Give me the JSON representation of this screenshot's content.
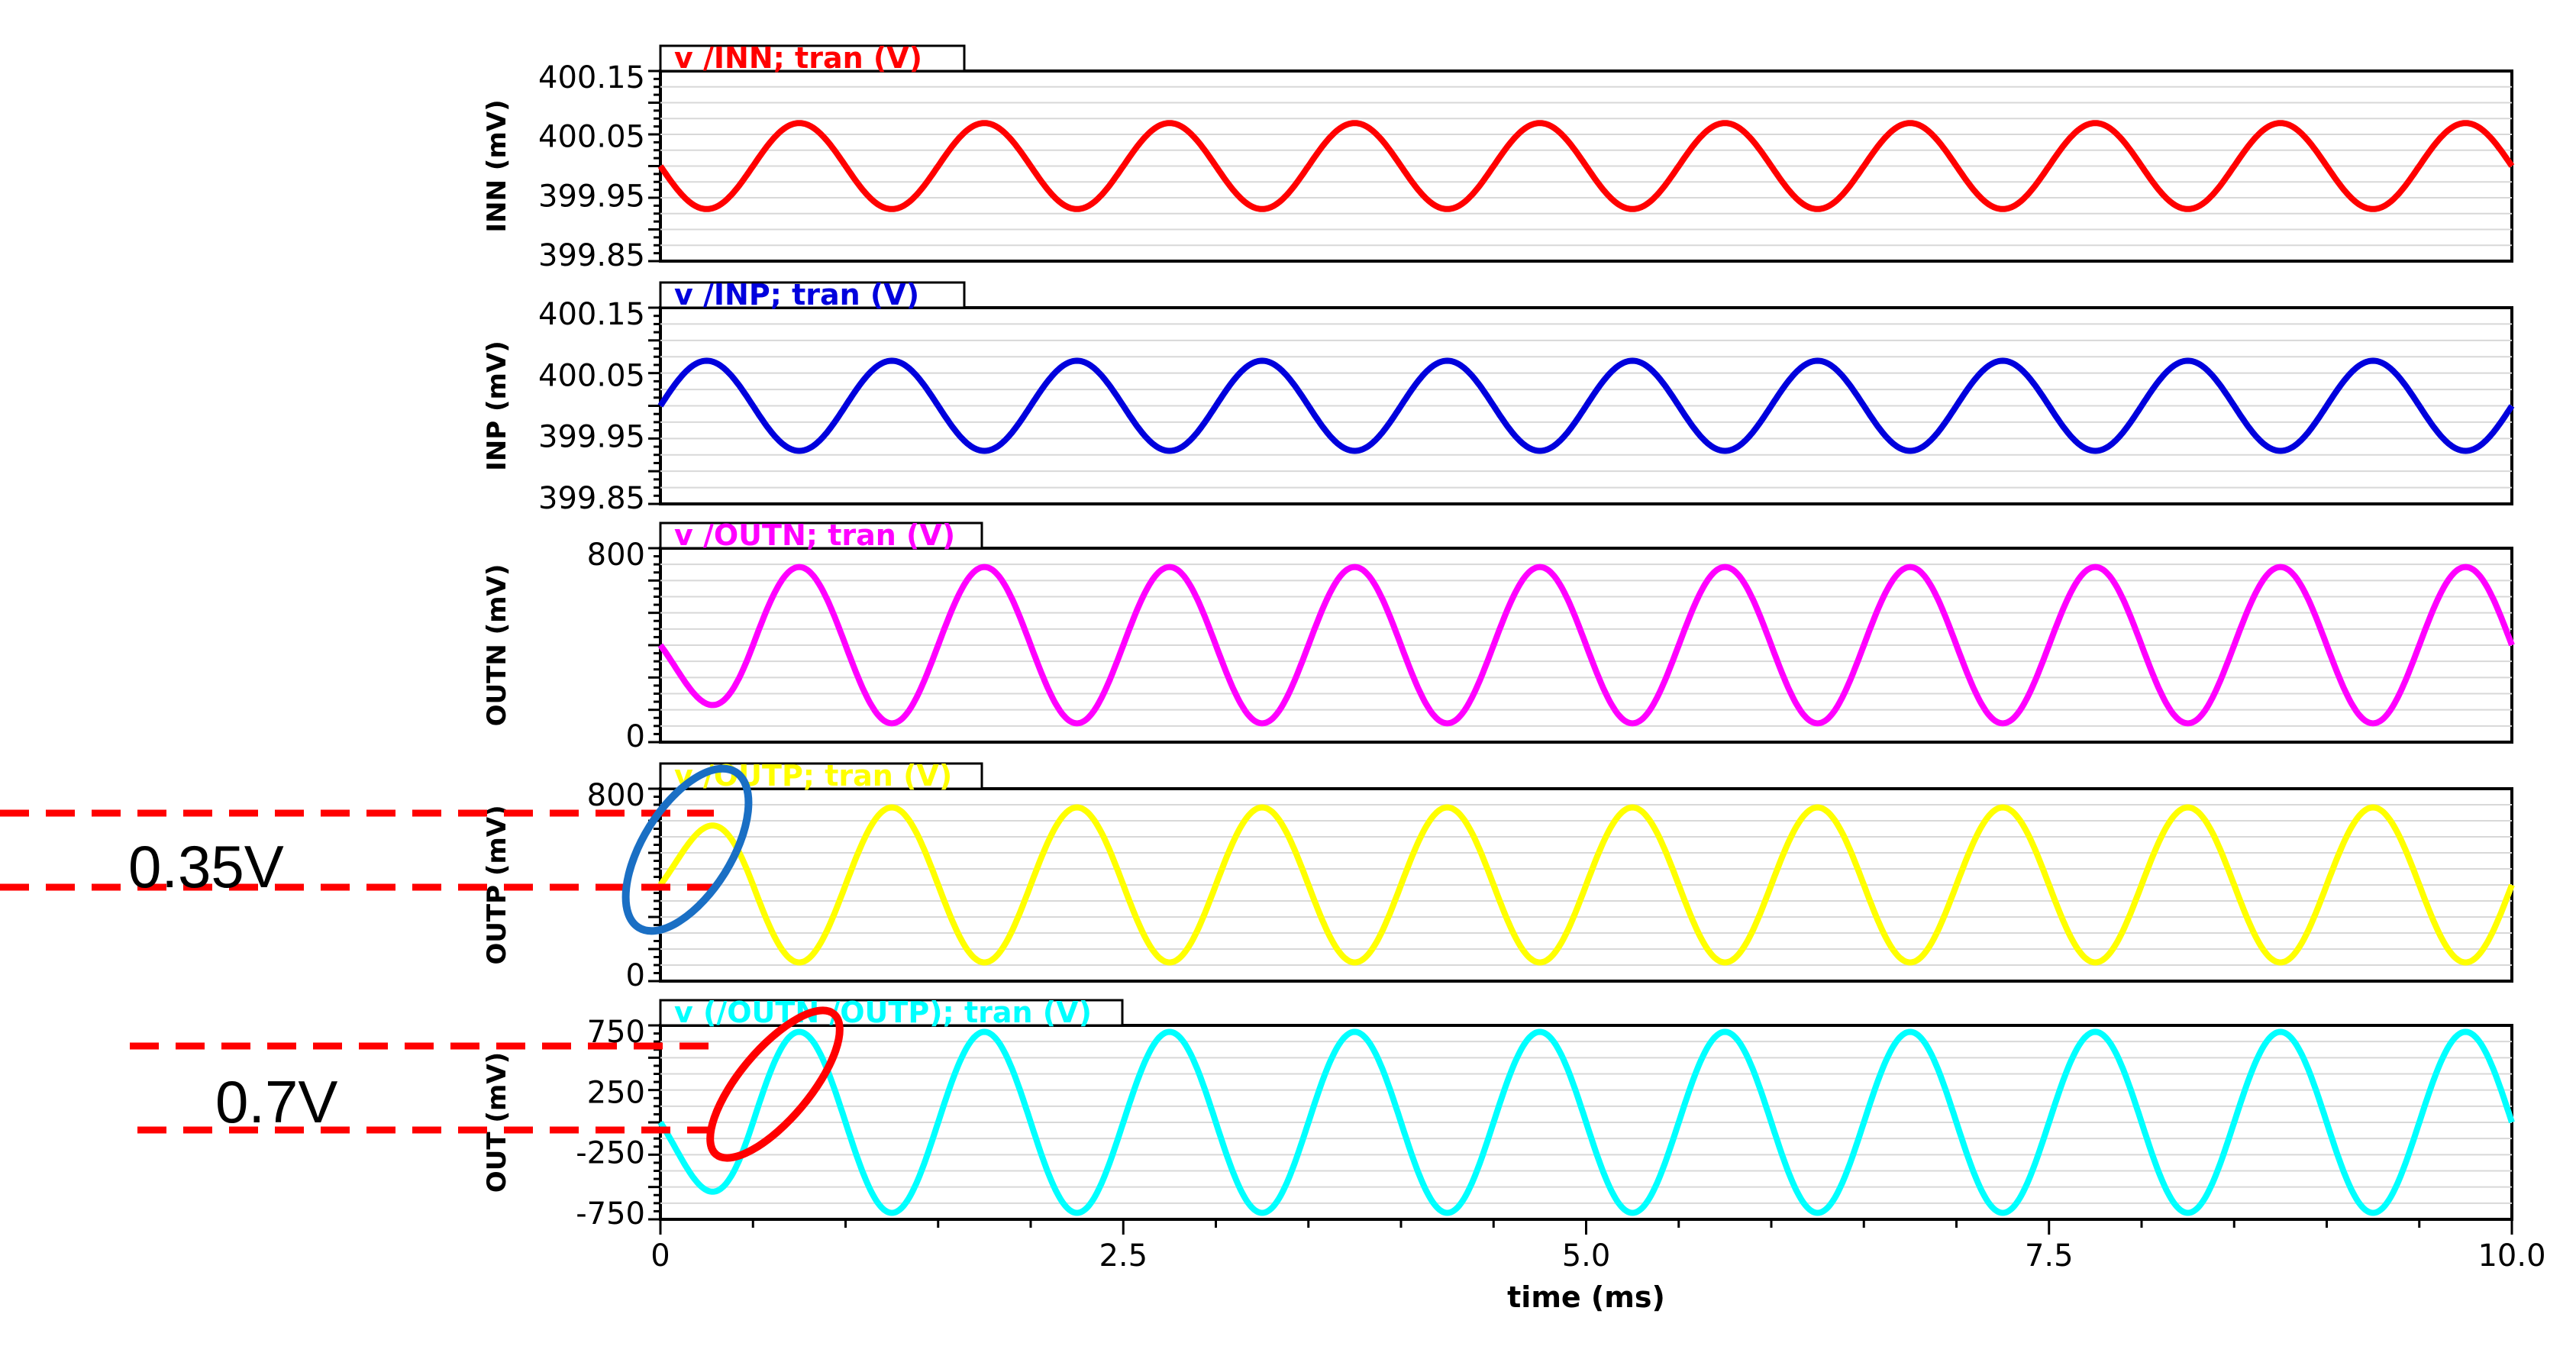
{
  "chart_data": [
    {
      "type": "line",
      "title": "v /INN; tran (V)",
      "ylabel": "INN (mV)",
      "yticks": [
        "400.15",
        "400.05",
        "399.95",
        "399.85"
      ],
      "ylim": [
        399.85,
        400.15
      ],
      "color": "#ff0000",
      "series": [
        {
          "name": "v /INN; tran (V)",
          "x_start": 0,
          "x_end": 10.0,
          "period": 1.0,
          "amplitude": 0.1,
          "offset": 400.0,
          "phase_deg": 180
        }
      ]
    },
    {
      "type": "line",
      "title": "v /INP; tran (V)",
      "ylabel": "INP (mV)",
      "yticks": [
        "400.15",
        "400.05",
        "399.95",
        "399.85"
      ],
      "ylim": [
        399.85,
        400.15
      ],
      "color": "#0000dd",
      "series": [
        {
          "name": "v /INP; tran (V)",
          "x_start": 0,
          "x_end": 10.0,
          "period": 1.0,
          "amplitude": 0.1,
          "offset": 400.0,
          "phase_deg": 0
        }
      ]
    },
    {
      "type": "line",
      "title": "v /OUTN; tran (V)",
      "ylabel": "OUTN (mV)",
      "yticks": [
        "800",
        "0"
      ],
      "ylim": [
        0,
        800
      ],
      "color": "#ff00ff",
      "series": [
        {
          "name": "v /OUTN; tran (V)",
          "x_start": 0,
          "x_end": 10.0,
          "period": 1.0,
          "amplitude": 350,
          "offset": 400,
          "phase_deg": 180,
          "start_value": 400
        }
      ]
    },
    {
      "type": "line",
      "title": "v /OUTP; tran (V)",
      "ylabel": "OUTP (mV)",
      "yticks": [
        "800",
        "0"
      ],
      "ylim": [
        0,
        800
      ],
      "color": "#ffff00",
      "series": [
        {
          "name": "v /OUTP; tran (V)",
          "x_start": 0,
          "x_end": 10.0,
          "period": 1.0,
          "amplitude": 350,
          "offset": 400,
          "phase_deg": 0,
          "start_value": 400
        }
      ]
    },
    {
      "type": "line",
      "title": "v (/OUTN /OUTP); tran (V)",
      "ylabel": "OUT (mV)",
      "yticks": [
        "750",
        "250",
        "-250",
        "-750"
      ],
      "ylim": [
        -750,
        750
      ],
      "color": "#00ffff",
      "series": [
        {
          "name": "v (/OUTN /OUTP); tran (V)",
          "x_start": 0,
          "x_end": 10.0,
          "period": 1.0,
          "amplitude": 700,
          "offset": 0,
          "phase_deg": 180,
          "start_value": 0
        }
      ]
    }
  ],
  "x_axis": {
    "label": "time (ms)",
    "ticks": [
      "0",
      "2.5",
      "5.0",
      "7.5",
      "10.0"
    ],
    "values": [
      0,
      2.5,
      5.0,
      7.5,
      10.0
    ],
    "range": [
      0,
      10.0
    ]
  },
  "annotations": {
    "note_1": "0.35V",
    "note_2": "0.7V",
    "dash_color": "#ff0000",
    "circle_1_color": "#1a6fc4",
    "circle_2_color": "#ff0000"
  }
}
